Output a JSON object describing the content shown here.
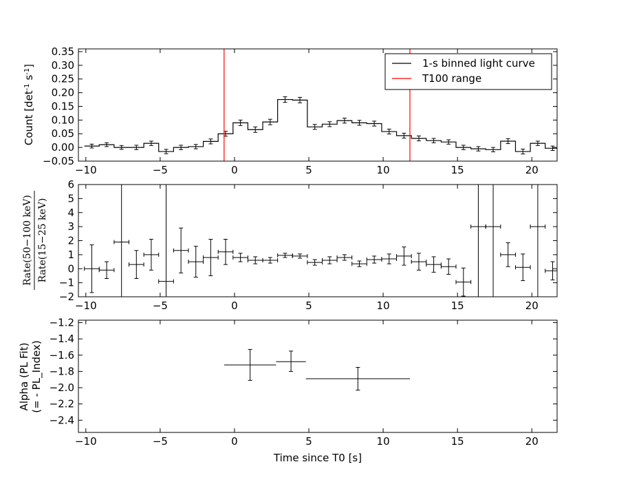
{
  "chart_data": [
    {
      "type": "step",
      "panel": "top",
      "ylabel_main": "Count [det",
      "ylabel_sup": "-1",
      "ylabel_end": " s",
      "ylabel_sup2": "-1",
      "ylabel_close": "]",
      "xlim": [
        -10.5,
        21.7
      ],
      "ylim": [
        -0.05,
        0.36
      ],
      "xticks": [
        -10,
        -5,
        0,
        5,
        10,
        15,
        20
      ],
      "yticks": [
        -0.05,
        0.0,
        0.05,
        0.1,
        0.15,
        0.2,
        0.25,
        0.3,
        0.35
      ],
      "ytick_labels": [
        "−0.05",
        "0.00",
        "0.05",
        "0.10",
        "0.15",
        "0.20",
        "0.25",
        "0.30",
        "0.35"
      ],
      "xtick_labels": [
        "−10",
        "−5",
        "0",
        "5",
        "10",
        "15",
        "20"
      ],
      "series": [
        {
          "name": "1-s binned light curve",
          "color": "#000000",
          "x_centers": [
            -9.6,
            -8.6,
            -7.6,
            -6.6,
            -5.6,
            -4.6,
            -3.6,
            -2.6,
            -1.6,
            -0.6,
            0.4,
            1.4,
            2.4,
            3.4,
            4.4,
            5.4,
            6.4,
            7.4,
            8.4,
            9.4,
            10.4,
            11.4,
            12.4,
            13.4,
            14.4,
            15.4,
            16.4,
            17.4,
            18.4,
            19.4,
            20.4,
            21.4
          ],
          "bin_width": 1.0,
          "values": [
            0.005,
            0.01,
            0.0,
            0.0,
            0.015,
            -0.015,
            0.0,
            0.003,
            0.022,
            0.05,
            0.09,
            0.065,
            0.093,
            0.175,
            0.173,
            0.075,
            0.085,
            0.098,
            0.09,
            0.087,
            0.058,
            0.043,
            0.033,
            0.025,
            0.02,
            0.0,
            -0.005,
            -0.008,
            0.023,
            -0.015,
            0.015,
            -0.003
          ],
          "errors": [
            0.007,
            0.007,
            0.007,
            0.008,
            0.008,
            0.008,
            0.008,
            0.008,
            0.009,
            0.009,
            0.01,
            0.01,
            0.01,
            0.01,
            0.01,
            0.009,
            0.009,
            0.009,
            0.009,
            0.009,
            0.009,
            0.009,
            0.009,
            0.008,
            0.008,
            0.008,
            0.008,
            0.008,
            0.009,
            0.009,
            0.008,
            0.008
          ]
        }
      ],
      "vlines": [
        {
          "name": "T100 range",
          "color": "#ff0000",
          "x": -0.7
        },
        {
          "name": "T100 range",
          "color": "#ff0000",
          "x": 11.8
        }
      ],
      "legend": {
        "placement": "top-right",
        "entries": [
          {
            "label": "1-s binned light curve",
            "color": "#000000"
          },
          {
            "label": "T100 range",
            "color": "#ff0000"
          }
        ]
      }
    },
    {
      "type": "errorbar",
      "panel": "middle",
      "ylabel_num": "Rate(50−100 keV)",
      "ylabel_den": "Rate(15−25 keV)",
      "xlim": [
        -10.5,
        21.7
      ],
      "ylim": [
        -2,
        6
      ],
      "xticks": [
        -10,
        -5,
        0,
        5,
        10,
        15,
        20
      ],
      "yticks": [
        -2,
        -1,
        0,
        1,
        2,
        3,
        4,
        5,
        6
      ],
      "ytick_labels": [
        "−2",
        "−1",
        "0",
        "1",
        "2",
        "3",
        "4",
        "5",
        "6"
      ],
      "xtick_labels": [
        "−10",
        "−5",
        "0",
        "5",
        "10",
        "15",
        "20"
      ],
      "points": [
        {
          "x": -9.6,
          "y": 0.0,
          "yerr": 1.7
        },
        {
          "x": -8.6,
          "y": -0.1,
          "yerr": 0.6
        },
        {
          "x": -7.6,
          "y": 1.9,
          "yerr": 8.0
        },
        {
          "x": -6.6,
          "y": 0.3,
          "yerr": 1.0
        },
        {
          "x": -5.6,
          "y": 1.0,
          "yerr": 1.1
        },
        {
          "x": -4.6,
          "y": -0.9,
          "yerr": 7.0
        },
        {
          "x": -3.6,
          "y": 1.3,
          "yerr": 1.6
        },
        {
          "x": -2.6,
          "y": 0.5,
          "yerr": 1.1
        },
        {
          "x": -1.6,
          "y": 0.8,
          "yerr": 1.3
        },
        {
          "x": -0.6,
          "y": 1.2,
          "yerr": 0.9
        },
        {
          "x": 0.4,
          "y": 0.8,
          "yerr": 0.3
        },
        {
          "x": 1.4,
          "y": 0.6,
          "yerr": 0.25
        },
        {
          "x": 2.4,
          "y": 0.6,
          "yerr": 0.2
        },
        {
          "x": 3.4,
          "y": 0.95,
          "yerr": 0.15
        },
        {
          "x": 4.4,
          "y": 0.9,
          "yerr": 0.15
        },
        {
          "x": 5.4,
          "y": 0.45,
          "yerr": 0.2
        },
        {
          "x": 6.4,
          "y": 0.6,
          "yerr": 0.25
        },
        {
          "x": 7.4,
          "y": 0.8,
          "yerr": 0.2
        },
        {
          "x": 8.4,
          "y": 0.35,
          "yerr": 0.2
        },
        {
          "x": 9.4,
          "y": 0.65,
          "yerr": 0.25
        },
        {
          "x": 10.4,
          "y": 0.7,
          "yerr": 0.35
        },
        {
          "x": 11.4,
          "y": 0.9,
          "yerr": 0.65
        },
        {
          "x": 12.4,
          "y": 0.5,
          "yerr": 0.6
        },
        {
          "x": 13.4,
          "y": 0.3,
          "yerr": 0.55
        },
        {
          "x": 14.4,
          "y": 0.15,
          "yerr": 0.55
        },
        {
          "x": 15.4,
          "y": -0.95,
          "yerr": 1.0
        },
        {
          "x": 16.4,
          "y": 3.0,
          "yerr": 9.0
        },
        {
          "x": 17.4,
          "y": 3.0,
          "yerr": 9.0
        },
        {
          "x": 18.4,
          "y": 1.0,
          "yerr": 0.85
        },
        {
          "x": 19.4,
          "y": 0.1,
          "yerr": 0.95
        },
        {
          "x": 20.4,
          "y": 3.0,
          "yerr": 9.0
        },
        {
          "x": 21.4,
          "y": -0.15,
          "yerr": 0.65
        }
      ],
      "xerr": 0.5
    },
    {
      "type": "errorbar",
      "panel": "bottom",
      "ylabel_line1": "Alpha (PL Fit)",
      "ylabel_line2": "(= - PL_Index)",
      "xlabel": "Time since T0 [s]",
      "xlim": [
        -10.5,
        21.7
      ],
      "ylim": [
        -2.55,
        -1.17
      ],
      "xticks": [
        -10,
        -5,
        0,
        5,
        10,
        15,
        20
      ],
      "yticks": [
        -2.4,
        -2.2,
        -2.0,
        -1.8,
        -1.6,
        -1.4,
        -1.2
      ],
      "ytick_labels": [
        "−2.4",
        "−2.2",
        "−2.0",
        "−1.8",
        "−1.6",
        "−1.4",
        "−1.2"
      ],
      "xtick_labels": [
        "−10",
        "−5",
        "0",
        "5",
        "10",
        "15",
        "20"
      ],
      "points": [
        {
          "x": 1.05,
          "xerr": 1.75,
          "y": -1.72,
          "yerr_low": 0.19,
          "yerr_high": 0.19
        },
        {
          "x": 3.8,
          "xerr": 1.0,
          "y": -1.68,
          "yerr_low": 0.12,
          "yerr_high": 0.13
        },
        {
          "x": 8.3,
          "xerr": 3.5,
          "y": -1.89,
          "yerr_low": 0.14,
          "yerr_high": 0.14
        }
      ]
    }
  ]
}
